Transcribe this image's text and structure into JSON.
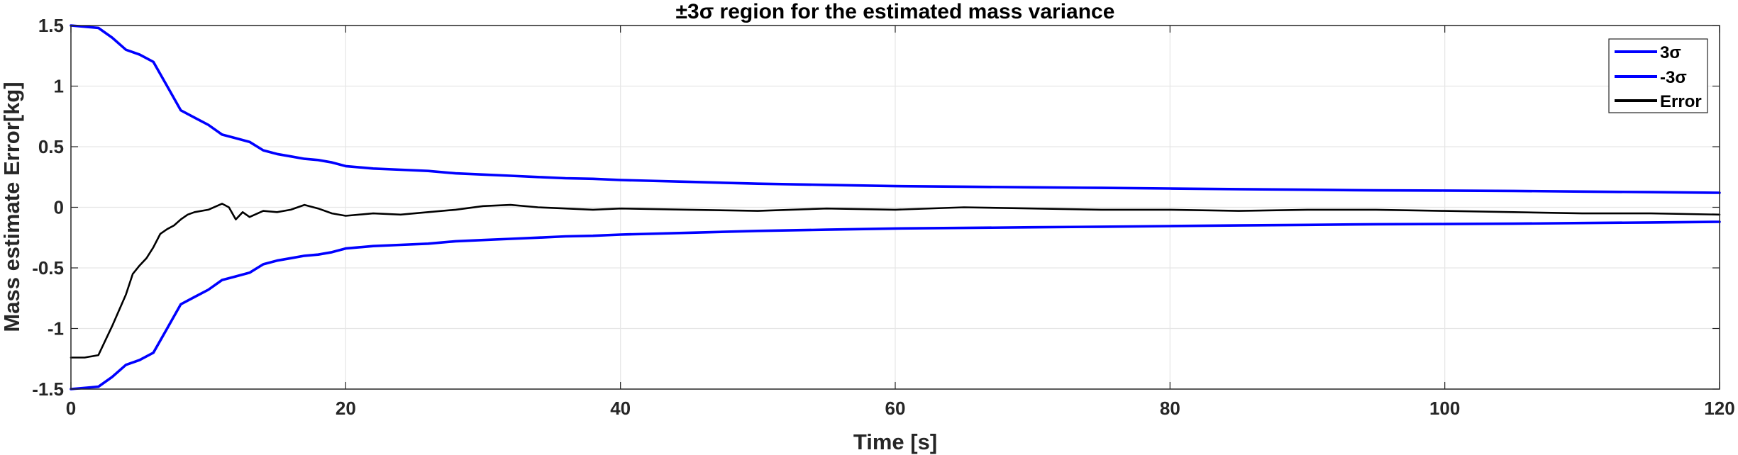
{
  "chart_data": {
    "type": "line",
    "title": "±3σ region for the estimated mass variance",
    "xlabel": "Time [s]",
    "ylabel": "Mass estimate Error[kg]",
    "xlim": [
      0,
      120
    ],
    "ylim": [
      -1.5,
      1.5
    ],
    "xticks": [
      0,
      20,
      40,
      60,
      80,
      100,
      120
    ],
    "yticks": [
      1.5,
      1,
      0.5,
      0,
      -0.5,
      -1,
      -1.5
    ],
    "xtick_labels": [
      "0",
      "20",
      "40",
      "60",
      "80",
      "100",
      "120"
    ],
    "ytick_labels": [
      "1.5",
      "1",
      "0.5",
      "0",
      "-0.5",
      "-1",
      "-1.5"
    ],
    "grid": true,
    "legend_position": "top-right",
    "series": [
      {
        "name": "3σ",
        "color": "#0000ff",
        "x": [
          0,
          2,
          3,
          4,
          5,
          6,
          7,
          8,
          9,
          10,
          11,
          12,
          13,
          14,
          15,
          16,
          17,
          18,
          19,
          20,
          22,
          24,
          26,
          28,
          30,
          32,
          34,
          36,
          38,
          40,
          45,
          50,
          55,
          60,
          65,
          70,
          75,
          80,
          85,
          90,
          95,
          100,
          105,
          110,
          115,
          120
        ],
        "y": [
          1.5,
          1.48,
          1.4,
          1.3,
          1.26,
          1.2,
          1.0,
          0.8,
          0.74,
          0.68,
          0.6,
          0.57,
          0.54,
          0.47,
          0.44,
          0.42,
          0.4,
          0.39,
          0.37,
          0.34,
          0.32,
          0.31,
          0.3,
          0.28,
          0.27,
          0.26,
          0.25,
          0.24,
          0.235,
          0.225,
          0.21,
          0.195,
          0.185,
          0.175,
          0.17,
          0.165,
          0.16,
          0.155,
          0.15,
          0.145,
          0.14,
          0.138,
          0.135,
          0.13,
          0.125,
          0.12
        ]
      },
      {
        "name": "-3σ",
        "color": "#0000ff",
        "x": [
          0,
          2,
          3,
          4,
          5,
          6,
          7,
          8,
          9,
          10,
          11,
          12,
          13,
          14,
          15,
          16,
          17,
          18,
          19,
          20,
          22,
          24,
          26,
          28,
          30,
          32,
          34,
          36,
          38,
          40,
          45,
          50,
          55,
          60,
          65,
          70,
          75,
          80,
          85,
          90,
          95,
          100,
          105,
          110,
          115,
          120
        ],
        "y": [
          -1.5,
          -1.48,
          -1.4,
          -1.3,
          -1.26,
          -1.2,
          -1.0,
          -0.8,
          -0.74,
          -0.68,
          -0.6,
          -0.57,
          -0.54,
          -0.47,
          -0.44,
          -0.42,
          -0.4,
          -0.39,
          -0.37,
          -0.34,
          -0.32,
          -0.31,
          -0.3,
          -0.28,
          -0.27,
          -0.26,
          -0.25,
          -0.24,
          -0.235,
          -0.225,
          -0.21,
          -0.195,
          -0.185,
          -0.175,
          -0.17,
          -0.165,
          -0.16,
          -0.155,
          -0.15,
          -0.145,
          -0.14,
          -0.138,
          -0.135,
          -0.13,
          -0.125,
          -0.12
        ]
      },
      {
        "name": "Error",
        "color": "#000000",
        "x": [
          0,
          1,
          2,
          2.5,
          3,
          3.5,
          4,
          4.5,
          5,
          5.5,
          6,
          6.5,
          7,
          7.5,
          8,
          8.5,
          9,
          10,
          11,
          11.5,
          12,
          12.5,
          13,
          14,
          15,
          16,
          17,
          18,
          19,
          20,
          22,
          24,
          26,
          28,
          30,
          32,
          34,
          36,
          38,
          40,
          45,
          50,
          55,
          60,
          65,
          70,
          75,
          80,
          85,
          90,
          95,
          100,
          105,
          110,
          115,
          120
        ],
        "y": [
          -1.24,
          -1.24,
          -1.22,
          -1.1,
          -0.98,
          -0.85,
          -0.72,
          -0.55,
          -0.48,
          -0.42,
          -0.33,
          -0.22,
          -0.18,
          -0.15,
          -0.1,
          -0.06,
          -0.04,
          -0.02,
          0.03,
          0.0,
          -0.1,
          -0.04,
          -0.08,
          -0.03,
          -0.04,
          -0.02,
          0.02,
          -0.01,
          -0.05,
          -0.07,
          -0.05,
          -0.06,
          -0.04,
          -0.02,
          0.01,
          0.02,
          0.0,
          -0.01,
          -0.02,
          -0.01,
          -0.02,
          -0.03,
          -0.01,
          -0.02,
          0.0,
          -0.01,
          -0.02,
          -0.02,
          -0.03,
          -0.02,
          -0.02,
          -0.03,
          -0.04,
          -0.05,
          -0.05,
          -0.06
        ]
      }
    ]
  }
}
